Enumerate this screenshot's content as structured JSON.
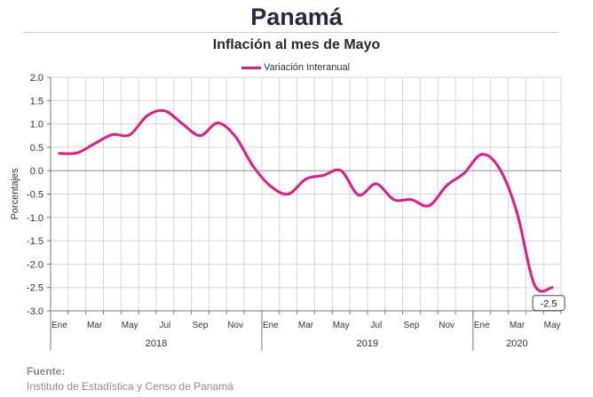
{
  "header": {
    "title": "Panamá",
    "subtitle": "Inflación al mes de Mayo"
  },
  "footer": {
    "source_label": "Fuente:",
    "source_text": "Instituto de Estadística y Censo de Panamá"
  },
  "colors": {
    "series": "#e0198d",
    "grid": "#d6d6d6",
    "zero_line": "#9a9a9a"
  },
  "chart_data": {
    "type": "line",
    "title": "Inflación al mes de Mayo",
    "ylabel": "Porcentajes",
    "xlabel": "",
    "ylim": [
      -3.0,
      2.0
    ],
    "yticks": [
      "2.0",
      "1.5",
      "1.0",
      "0.5",
      "0.0",
      "-0.5",
      "-1.0",
      "-1.5",
      "-2.0",
      "-2.5",
      "-3.0"
    ],
    "ytick_values": [
      2.0,
      1.5,
      1.0,
      0.5,
      0.0,
      -0.5,
      -1.0,
      -1.5,
      -2.0,
      -2.5,
      -3.0
    ],
    "month_labels": [
      "Ene",
      "Mar",
      "May",
      "Jul",
      "Sep",
      "Nov",
      "Ene",
      "Mar",
      "May",
      "Jul",
      "Sep",
      "Nov",
      "Ene",
      "Mar",
      "May"
    ],
    "year_labels": [
      "2018",
      "2019",
      "2020"
    ],
    "x": [
      "Ene 2018",
      "Feb 2018",
      "Mar 2018",
      "Abr 2018",
      "May 2018",
      "Jun 2018",
      "Jul 2018",
      "Ago 2018",
      "Sep 2018",
      "Oct 2018",
      "Nov 2018",
      "Dic 2018",
      "Ene 2019",
      "Feb 2019",
      "Mar 2019",
      "Abr 2019",
      "May 2019",
      "Jun 2019",
      "Jul 2019",
      "Ago 2019",
      "Sep 2019",
      "Oct 2019",
      "Nov 2019",
      "Dic 2019",
      "Ene 2020",
      "Feb 2020",
      "Mar 2020",
      "Abr 2020",
      "May 2020"
    ],
    "series": [
      {
        "name": "Variación Interanual",
        "values": [
          0.37,
          0.38,
          0.58,
          0.77,
          0.77,
          1.18,
          1.28,
          1.0,
          0.75,
          1.02,
          0.73,
          0.1,
          -0.33,
          -0.5,
          -0.18,
          -0.1,
          0.0,
          -0.52,
          -0.28,
          -0.62,
          -0.62,
          -0.75,
          -0.32,
          -0.05,
          0.35,
          0.05,
          -0.9,
          -2.45,
          -2.5
        ]
      }
    ],
    "data_labels": [
      {
        "index": 28,
        "text": "-2.5"
      }
    ],
    "grid": true,
    "legend_position": "top-center"
  }
}
